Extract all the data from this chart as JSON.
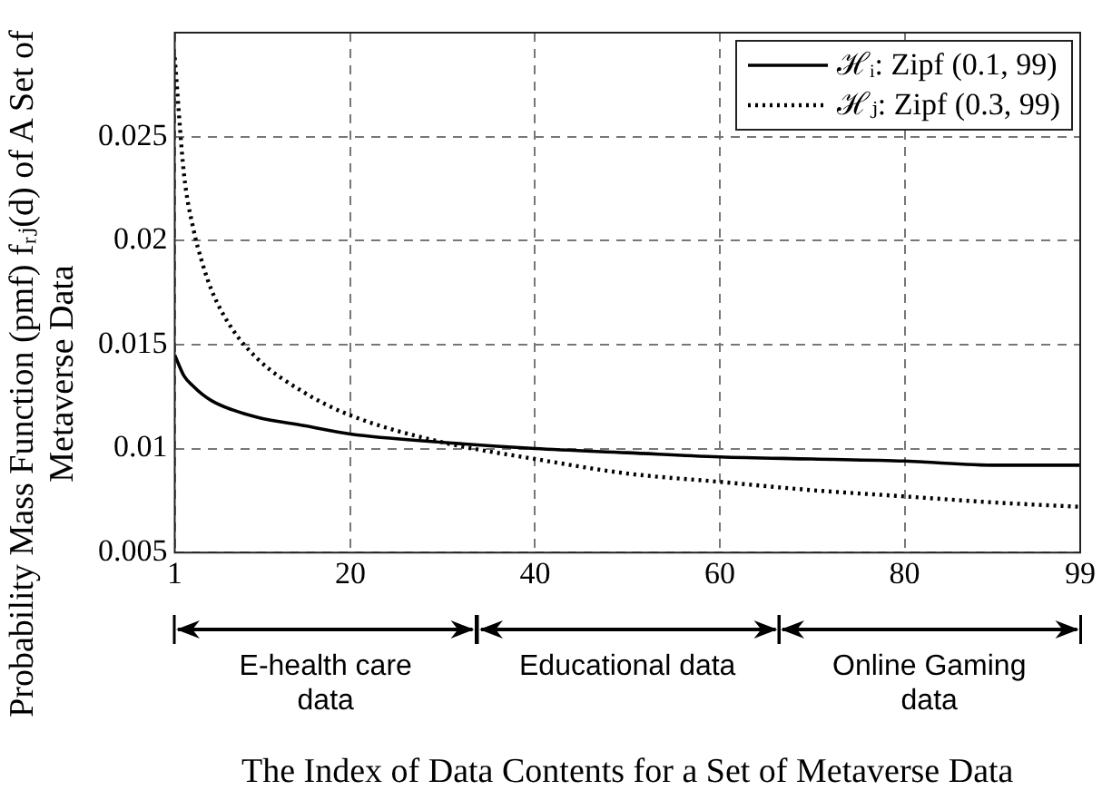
{
  "chart_data": {
    "type": "line",
    "xlabel": "The Index of Data Contents for a Set of Metaverse Data",
    "ylabel": "Probability Mass Function (pmf) fᵣⱼ(d) of A Set of Metaverse Data",
    "x": [
      1,
      2,
      3,
      4,
      5,
      7,
      10,
      15,
      20,
      30,
      40,
      50,
      60,
      70,
      80,
      90,
      99
    ],
    "series": [
      {
        "name": "ℋᵢ: Zipf (0.1, 99)",
        "color": "#000000",
        "line_style": "solid",
        "values": [
          0.0145,
          0.0135,
          0.013,
          0.0126,
          0.0123,
          0.0119,
          0.0115,
          0.0111,
          0.0107,
          0.0103,
          0.01,
          0.0098,
          0.0096,
          0.0095,
          0.0094,
          0.0092,
          0.0092
        ]
      },
      {
        "name": "ℋⱼ: Zipf (0.3, 99)",
        "color": "#000000",
        "line_style": "dotted",
        "values": [
          0.0288,
          0.0232,
          0.0206,
          0.0189,
          0.0176,
          0.0159,
          0.0143,
          0.0127,
          0.0116,
          0.0103,
          0.0095,
          0.0088,
          0.0084,
          0.008,
          0.0077,
          0.0074,
          0.0072
        ]
      }
    ],
    "xlim": [
      1,
      99
    ],
    "xticks": [
      1,
      20,
      40,
      60,
      80,
      99
    ],
    "ylim": [
      0.005,
      0.03
    ],
    "yticks": [
      0.005,
      0.01,
      0.015,
      0.02,
      0.025
    ],
    "annotations": [
      "E-health care data",
      "Educational data",
      "Online Gaming data"
    ],
    "grid": true,
    "legend": "top right",
    "marker": "none"
  }
}
